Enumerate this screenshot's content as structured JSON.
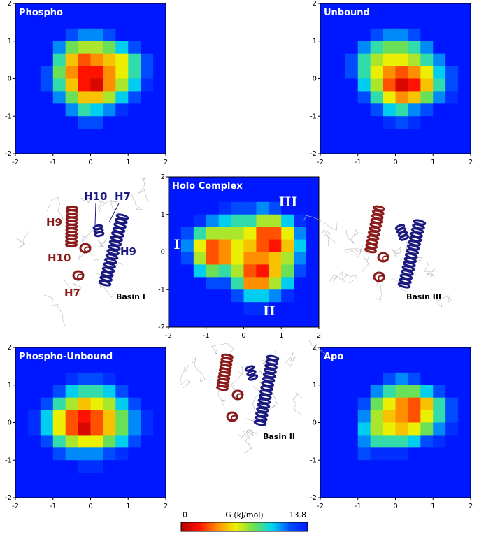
{
  "chart_data": [
    {
      "type": "heatmap",
      "title": "Phospho",
      "xlim": [
        -2,
        2
      ],
      "ylim": [
        -2,
        2
      ],
      "xticks": [
        -2,
        -1,
        0,
        1,
        2
      ],
      "yticks": [
        -2,
        -1,
        0,
        1,
        2
      ],
      "z": [
        [
          13.8,
          13.8,
          13.8,
          13.8,
          13.8,
          13.8,
          13.8,
          13.8,
          13.8,
          13.8,
          13.8,
          13.8
        ],
        [
          13.8,
          13.8,
          13.8,
          13.8,
          13.8,
          13.8,
          13.8,
          13.8,
          13.8,
          13.8,
          13.8,
          13.8
        ],
        [
          13.8,
          13.8,
          13.8,
          13.8,
          12,
          11,
          11,
          12,
          13.8,
          13.8,
          13.8,
          13.8
        ],
        [
          13.8,
          13.8,
          13.8,
          11,
          8,
          7,
          7,
          8,
          10,
          12,
          13.8,
          13.8
        ],
        [
          13.8,
          13.8,
          13.8,
          9,
          5,
          3,
          4,
          5,
          6,
          9,
          12,
          13.8
        ],
        [
          13.8,
          13.8,
          12,
          8,
          4,
          2,
          2,
          4,
          6,
          9,
          12,
          13.8
        ],
        [
          13.8,
          13.8,
          12,
          9,
          5,
          2,
          1,
          4,
          7,
          10,
          13,
          13.8
        ],
        [
          13.8,
          13.8,
          13.8,
          11,
          8,
          5,
          5,
          7,
          10,
          12,
          13.8,
          13.8
        ],
        [
          13.8,
          13.8,
          13.8,
          13.8,
          11,
          9,
          10,
          11,
          13,
          13.8,
          13.8,
          13.8
        ],
        [
          13.8,
          13.8,
          13.8,
          13.8,
          13.8,
          12,
          12,
          13.8,
          13.8,
          13.8,
          13.8,
          13.8
        ],
        [
          13.8,
          13.8,
          13.8,
          13.8,
          13.8,
          13.8,
          13.8,
          13.8,
          13.8,
          13.8,
          13.8,
          13.8
        ],
        [
          13.8,
          13.8,
          13.8,
          13.8,
          13.8,
          13.8,
          13.8,
          13.8,
          13.8,
          13.8,
          13.8,
          13.8
        ]
      ]
    },
    {
      "type": "heatmap",
      "title": "Unbound",
      "xlim": [
        -2,
        2
      ],
      "ylim": [
        -2,
        2
      ],
      "xticks": [
        -2,
        -1,
        0,
        1,
        2
      ],
      "yticks": [
        -2,
        -1,
        0,
        1,
        2
      ],
      "z": [
        [
          13.8,
          13.8,
          13.8,
          13.8,
          13.8,
          13.8,
          13.8,
          13.8,
          13.8,
          13.8,
          13.8,
          13.8
        ],
        [
          13.8,
          13.8,
          13.8,
          13.8,
          13.8,
          13.8,
          13.8,
          13.8,
          13.8,
          13.8,
          13.8,
          13.8
        ],
        [
          13.8,
          13.8,
          13.8,
          13.8,
          12,
          11,
          11,
          12,
          13.8,
          13.8,
          13.8,
          13.8
        ],
        [
          13.8,
          13.8,
          13.8,
          11,
          9,
          8,
          8,
          9,
          11,
          13.8,
          13.8,
          13.8
        ],
        [
          13.8,
          13.8,
          12,
          9,
          7,
          6,
          6,
          7,
          9,
          11,
          13.8,
          13.8
        ],
        [
          13.8,
          13.8,
          12,
          9,
          6,
          4,
          3,
          4,
          6,
          10,
          12,
          13.8
        ],
        [
          13.8,
          13.8,
          13.8,
          10,
          7,
          3,
          1,
          2,
          5,
          9,
          12,
          13.8
        ],
        [
          13.8,
          13.8,
          13.8,
          12,
          9,
          6,
          4,
          5,
          8,
          11,
          13,
          13.8
        ],
        [
          13.8,
          13.8,
          13.8,
          13.8,
          12,
          10,
          9,
          11,
          12,
          13.8,
          13.8,
          13.8
        ],
        [
          13.8,
          13.8,
          13.8,
          13.8,
          13.8,
          13,
          12,
          13,
          13.8,
          13.8,
          13.8,
          13.8
        ],
        [
          13.8,
          13.8,
          13.8,
          13.8,
          13.8,
          13.8,
          13.8,
          13.8,
          13.8,
          13.8,
          13.8,
          13.8
        ],
        [
          13.8,
          13.8,
          13.8,
          13.8,
          13.8,
          13.8,
          13.8,
          13.8,
          13.8,
          13.8,
          13.8,
          13.8
        ]
      ]
    },
    {
      "type": "heatmap",
      "title": "Holo Complex",
      "xlim": [
        -2,
        2
      ],
      "ylim": [
        -2,
        2
      ],
      "xticks": [
        -2,
        -1,
        0,
        1,
        2
      ],
      "yticks": [
        -2,
        -1,
        0,
        1,
        2
      ],
      "annotations": [
        "I",
        "II",
        "III"
      ],
      "z": [
        [
          13.8,
          13.8,
          13.8,
          13.8,
          13.8,
          13.8,
          13.8,
          13.8,
          13.8,
          13.8,
          13.8,
          13.8
        ],
        [
          13.8,
          13.8,
          13.8,
          13.8,
          13.8,
          13.8,
          13.8,
          13.8,
          13.8,
          13.8,
          13.8,
          13.8
        ],
        [
          13.8,
          13.8,
          13.8,
          13.8,
          13,
          12,
          12,
          11,
          12,
          13.8,
          13.8,
          13.8
        ],
        [
          13.8,
          13.8,
          13,
          11,
          10,
          9,
          9,
          7,
          7,
          10,
          13,
          13.8
        ],
        [
          13.8,
          12,
          9,
          7,
          7,
          7,
          6,
          3,
          3,
          6,
          11,
          13.8
        ],
        [
          13.8,
          11,
          6,
          3,
          4,
          6,
          5,
          3,
          2,
          5,
          10,
          13.8
        ],
        [
          13.8,
          12,
          7,
          3,
          4,
          6,
          4,
          4,
          5,
          7,
          11,
          13.8
        ],
        [
          13.8,
          13.8,
          10,
          8,
          9,
          7,
          3,
          2,
          5,
          8,
          12,
          13.8
        ],
        [
          13.8,
          13.8,
          13.8,
          12,
          12,
          9,
          4,
          4,
          7,
          10,
          13.8,
          13.8
        ],
        [
          13.8,
          13.8,
          13.8,
          13.8,
          13.8,
          12,
          10,
          10,
          11,
          13,
          13.8,
          13.8
        ],
        [
          13.8,
          13.8,
          13.8,
          13.8,
          13.8,
          13.8,
          13,
          13,
          13.8,
          13.8,
          13.8,
          13.8
        ],
        [
          13.8,
          13.8,
          13.8,
          13.8,
          13.8,
          13.8,
          13.8,
          13.8,
          13.8,
          13.8,
          13.8,
          13.8
        ]
      ]
    },
    {
      "type": "heatmap",
      "title": "Phospho-Unbound",
      "xlim": [
        -2,
        2
      ],
      "ylim": [
        -2,
        2
      ],
      "xticks": [
        -2,
        -1,
        0,
        1,
        2
      ],
      "yticks": [
        -2,
        -1,
        0,
        1,
        2
      ],
      "z": [
        [
          13.8,
          13.8,
          13.8,
          13.8,
          13.8,
          13.8,
          13.8,
          13.8,
          13.8,
          13.8,
          13.8,
          13.8
        ],
        [
          13.8,
          13.8,
          13.8,
          13.8,
          13.8,
          13.8,
          13.8,
          13.8,
          13.8,
          13.8,
          13.8,
          13.8
        ],
        [
          13.8,
          13.8,
          13.8,
          13.8,
          13,
          12,
          12,
          13,
          13.8,
          13.8,
          13.8,
          13.8
        ],
        [
          13.8,
          13.8,
          13.8,
          12,
          10,
          9,
          9,
          10,
          12,
          13.8,
          13.8,
          13.8
        ],
        [
          13.8,
          13.8,
          12,
          9,
          7,
          5,
          6,
          7,
          10,
          12,
          13.8,
          13.8
        ],
        [
          13.8,
          13,
          10,
          6,
          3,
          2,
          3,
          5,
          8,
          11,
          13,
          13.8
        ],
        [
          13.8,
          13,
          10,
          6,
          3,
          1,
          3,
          5,
          8,
          11,
          13,
          13.8
        ],
        [
          13.8,
          13.8,
          12,
          9,
          7,
          6,
          6,
          8,
          10,
          12,
          13.8,
          13.8
        ],
        [
          13.8,
          13.8,
          13.8,
          12,
          11,
          11,
          11,
          12,
          13,
          13.8,
          13.8,
          13.8
        ],
        [
          13.8,
          13.8,
          13.8,
          13.8,
          13.8,
          13,
          13,
          13.8,
          13.8,
          13.8,
          13.8,
          13.8
        ],
        [
          13.8,
          13.8,
          13.8,
          13.8,
          13.8,
          13.8,
          13.8,
          13.8,
          13.8,
          13.8,
          13.8,
          13.8
        ],
        [
          13.8,
          13.8,
          13.8,
          13.8,
          13.8,
          13.8,
          13.8,
          13.8,
          13.8,
          13.8,
          13.8,
          13.8
        ]
      ]
    },
    {
      "type": "heatmap",
      "title": "Apo",
      "xlim": [
        -2,
        2
      ],
      "ylim": [
        -2,
        2
      ],
      "xticks": [
        -2,
        -1,
        0,
        1,
        2
      ],
      "yticks": [
        -2,
        -1,
        0,
        1,
        2
      ],
      "z": [
        [
          13.8,
          13.8,
          13.8,
          13.8,
          13.8,
          13.8,
          13.8,
          13.8,
          13.8,
          13.8,
          13.8,
          13.8
        ],
        [
          13.8,
          13.8,
          13.8,
          13.8,
          13.8,
          13.8,
          13.8,
          13.8,
          13.8,
          13.8,
          13.8,
          13.8
        ],
        [
          13.8,
          13.8,
          13.8,
          13.8,
          13.8,
          12,
          11,
          12,
          13.8,
          13.8,
          13.8,
          13.8
        ],
        [
          13.8,
          13.8,
          13.8,
          13.8,
          11,
          9,
          8,
          8,
          10,
          12,
          13.8,
          13.8
        ],
        [
          13.8,
          13.8,
          13.8,
          12,
          8,
          6,
          4,
          3,
          5,
          9,
          12,
          13.8
        ],
        [
          13.8,
          13.8,
          13.8,
          11,
          7,
          5,
          4,
          3,
          6,
          9,
          12,
          13.8
        ],
        [
          13.8,
          13.8,
          13.8,
          10,
          7,
          6,
          5,
          6,
          8,
          11,
          13,
          13.8
        ],
        [
          13.8,
          13.8,
          13.8,
          11,
          9,
          9,
          9,
          10,
          12,
          13,
          13.8,
          13.8
        ],
        [
          13.8,
          13.8,
          13.8,
          12,
          13,
          13,
          13,
          13.8,
          13.8,
          13.8,
          13.8,
          13.8
        ],
        [
          13.8,
          13.8,
          13.8,
          13.8,
          13.8,
          13.8,
          13.8,
          13.8,
          13.8,
          13.8,
          13.8,
          13.8
        ],
        [
          13.8,
          13.8,
          13.8,
          13.8,
          13.8,
          13.8,
          13.8,
          13.8,
          13.8,
          13.8,
          13.8,
          13.8
        ],
        [
          13.8,
          13.8,
          13.8,
          13.8,
          13.8,
          13.8,
          13.8,
          13.8,
          13.8,
          13.8,
          13.8,
          13.8
        ]
      ]
    }
  ],
  "colorbar": {
    "label": "G (kJ/mol)",
    "lim": [
      0,
      13.8
    ],
    "ticks": [
      0,
      13.8
    ],
    "colors": [
      "#b00000",
      "#ff1000",
      "#ff8c00",
      "#f0f000",
      "#70e050",
      "#00d8f0",
      "#0050ff",
      "#0018ff"
    ]
  },
  "structures": [
    {
      "caption": "Basin I",
      "red_labels": [
        "H9",
        "H10",
        "H7"
      ],
      "blue_labels": [
        "H10",
        "H7",
        "H9"
      ]
    },
    {
      "caption": "Basin III"
    },
    {
      "caption": "Basin II"
    }
  ]
}
